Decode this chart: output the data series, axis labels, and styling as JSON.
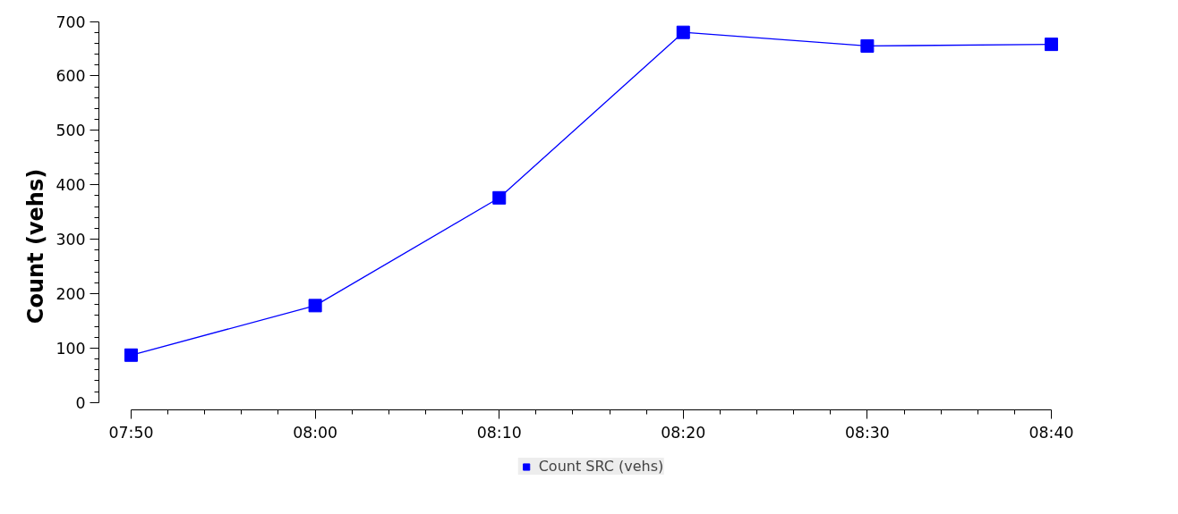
{
  "chart_data": {
    "type": "line",
    "ylabel": "Count (vehs)",
    "x": [
      7.8333,
      8.0,
      8.1667,
      8.3333,
      8.5,
      8.6667
    ],
    "series": [
      {
        "name": "Count SRC (vehs)",
        "color": "#0000ff",
        "values": [
          87,
          178,
          376,
          680,
          655,
          658
        ]
      }
    ],
    "xlim": [
      7.8333,
      8.6667
    ],
    "xticks": [
      {
        "value": 7.8333,
        "label": "07:50"
      },
      {
        "value": 8.0,
        "label": "08:00"
      },
      {
        "value": 8.1667,
        "label": "08:10"
      },
      {
        "value": 8.3333,
        "label": "08:20"
      },
      {
        "value": 8.5,
        "label": "08:30"
      },
      {
        "value": 8.6667,
        "label": "08:40"
      }
    ],
    "ylim": [
      0,
      700
    ],
    "yticks": [
      0,
      100,
      200,
      300,
      400,
      500,
      600,
      700
    ],
    "grid": false,
    "legend": "bottom",
    "marker": "square",
    "line_style": "solid"
  }
}
